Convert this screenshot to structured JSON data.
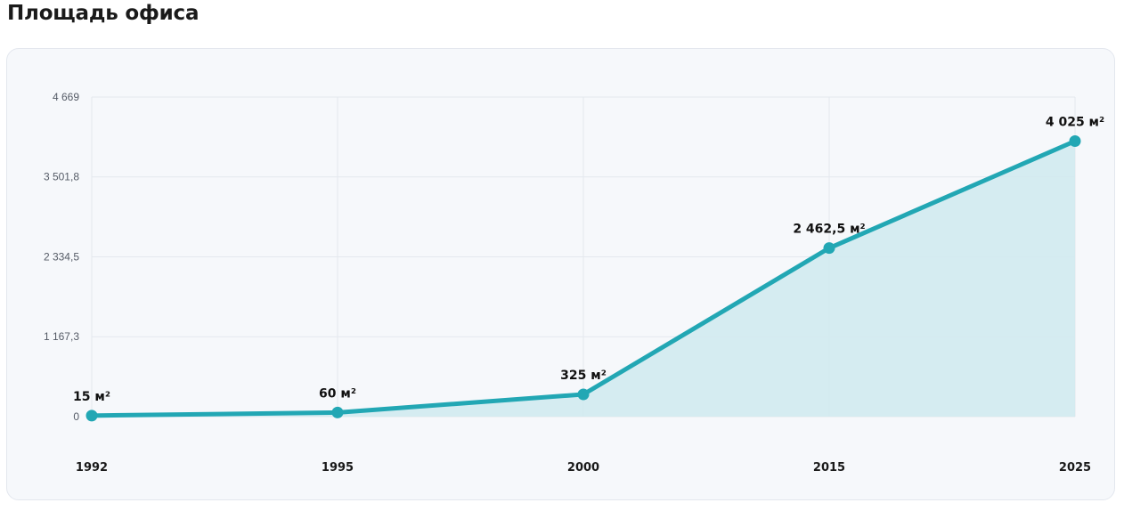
{
  "title": "Площадь офиса",
  "colors": {
    "line": "#22a7b4",
    "area": "#d2eaf0",
    "grid": "#e4e8ee",
    "card_background": "#f6f8fb"
  },
  "chart_data": {
    "type": "area",
    "categories": [
      "1992",
      "1995",
      "2000",
      "2015",
      "2025"
    ],
    "series": [
      {
        "values": [
          15,
          60,
          325,
          2462.5,
          4025
        ]
      }
    ],
    "data_labels": [
      "15 м²",
      "60 м²",
      "325 м²",
      "2 462,5 м²",
      "4 025 м²"
    ],
    "yticks": [
      0,
      1167.3,
      2334.5,
      3501.8,
      4669
    ],
    "ytick_labels": [
      "0",
      "1 167,3",
      "2 334,5",
      "3 501,8",
      "4 669"
    ],
    "ylim": [
      0,
      4669
    ],
    "xlabel": "",
    "ylabel": "",
    "grid": true,
    "legend": "none"
  }
}
